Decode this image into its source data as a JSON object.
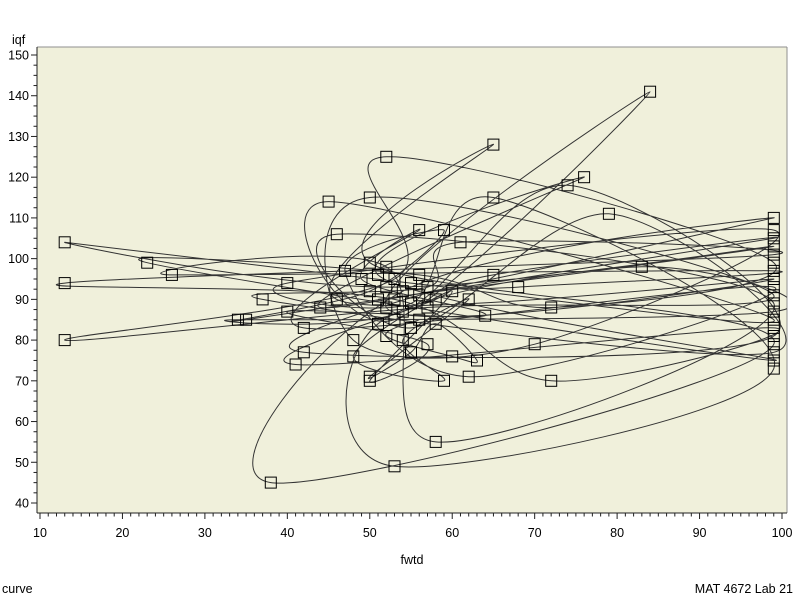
{
  "footer": {
    "left_text": "curve",
    "right_text": "MAT 4672 Lab 21"
  },
  "chart_data": {
    "type": "scatter",
    "title": "",
    "xlabel": "fwtd",
    "ylabel": "iqf",
    "xlim": [
      10,
      100
    ],
    "ylim": [
      40,
      150
    ],
    "x_major_ticks": [
      10,
      20,
      30,
      40,
      50,
      60,
      70,
      80,
      90,
      100
    ],
    "y_major_ticks": [
      40,
      50,
      60,
      70,
      80,
      90,
      100,
      110,
      120,
      130,
      140,
      150
    ],
    "x_minor_step": 1,
    "y_minor_step": 2.5,
    "grid": false,
    "legend": false,
    "marker": "hollow-square",
    "interpolation": "smooth-spline-through-points-in-data-order",
    "colors": {
      "plot_background": "#F0F0DB",
      "page_background": "#FFFFFF",
      "curve": "#333333",
      "marker": "#000000",
      "frame": "#8F8F8F",
      "axis": "#202020",
      "text": "#000000"
    },
    "points": [
      [
        51,
        90
      ],
      [
        99,
        103
      ],
      [
        52,
        93
      ],
      [
        13,
        104
      ],
      [
        55,
        94
      ],
      [
        99,
        85
      ],
      [
        45,
        114
      ],
      [
        53,
        85
      ],
      [
        84,
        141
      ],
      [
        52,
        88
      ],
      [
        99,
        95
      ],
      [
        46,
        90
      ],
      [
        65,
        128
      ],
      [
        50,
        99
      ],
      [
        99,
        79
      ],
      [
        38,
        45
      ],
      [
        54,
        92
      ],
      [
        99,
        110
      ],
      [
        44,
        88
      ],
      [
        76,
        120
      ],
      [
        51,
        96
      ],
      [
        99,
        75
      ],
      [
        23,
        99
      ],
      [
        56,
        96
      ],
      [
        72,
        88
      ],
      [
        99,
        99
      ],
      [
        52,
        125
      ],
      [
        53,
        95
      ],
      [
        13,
        80
      ],
      [
        57,
        88
      ],
      [
        99,
        91
      ],
      [
        50,
        115
      ],
      [
        48,
        80
      ],
      [
        70,
        79
      ],
      [
        99,
        107
      ],
      [
        40,
        94
      ],
      [
        55,
        89
      ],
      [
        65,
        115
      ],
      [
        99,
        73
      ],
      [
        53,
        49
      ],
      [
        51,
        84
      ],
      [
        83,
        98
      ],
      [
        99,
        87
      ],
      [
        34,
        85
      ],
      [
        54,
        87
      ],
      [
        74,
        118
      ],
      [
        99,
        81
      ],
      [
        42,
        77
      ],
      [
        56,
        91
      ],
      [
        68,
        93
      ],
      [
        99,
        97
      ],
      [
        26,
        96
      ],
      [
        52,
        98
      ],
      [
        58,
        55
      ],
      [
        99,
        89
      ],
      [
        46,
        106
      ],
      [
        55,
        83
      ],
      [
        79,
        111
      ],
      [
        99,
        77
      ],
      [
        37,
        90
      ],
      [
        57,
        93
      ],
      [
        61,
        104
      ],
      [
        99,
        101
      ],
      [
        13,
        94
      ],
      [
        53,
        90
      ],
      [
        72,
        70
      ],
      [
        99,
        83
      ],
      [
        41,
        74
      ],
      [
        58,
        90
      ],
      [
        65,
        96
      ],
      [
        99,
        105
      ],
      [
        35,
        85
      ],
      [
        50,
        92
      ],
      [
        59,
        107
      ],
      [
        47,
        97
      ],
      [
        62,
        71
      ],
      [
        99,
        93
      ],
      [
        42,
        83
      ],
      [
        56,
        107
      ],
      [
        49,
        95
      ],
      [
        64,
        86
      ],
      [
        40,
        87
      ],
      [
        57,
        79
      ],
      [
        50,
        70
      ],
      [
        60,
        92
      ],
      [
        48,
        76
      ],
      [
        59,
        70
      ],
      [
        54,
        80
      ],
      [
        62,
        90
      ],
      [
        50,
        71
      ],
      [
        55,
        77
      ],
      [
        58,
        84
      ],
      [
        63,
        75
      ],
      [
        60,
        76
      ],
      [
        52,
        81
      ],
      [
        56,
        85
      ]
    ]
  }
}
